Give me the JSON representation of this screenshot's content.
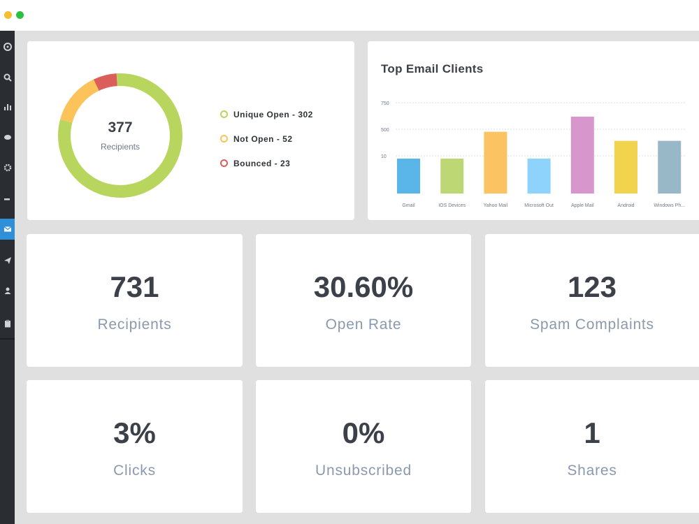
{
  "window": {
    "controls": [
      "close",
      "minimize"
    ]
  },
  "sidebar": {
    "items": [
      {
        "icon": "dashboard-icon",
        "active": false
      },
      {
        "icon": "search-icon",
        "active": false
      },
      {
        "icon": "reports-icon",
        "active": false
      },
      {
        "icon": "chat-icon",
        "active": false
      },
      {
        "icon": "settings-icon",
        "active": false
      },
      {
        "icon": "tools-icon",
        "active": false
      },
      {
        "icon": "email-icon",
        "active": true
      },
      {
        "icon": "send-icon",
        "active": false
      },
      {
        "icon": "user-icon",
        "active": false
      },
      {
        "icon": "clipboard-icon",
        "active": false
      }
    ]
  },
  "recipients_summary": {
    "total": "377",
    "total_label": "Recipients",
    "legend": [
      {
        "label": "Unique Open - 302",
        "value": 302,
        "color": "#b8d65e"
      },
      {
        "label": "Not Open - 52",
        "value": 52,
        "color": "#fbc35a"
      },
      {
        "label": "Bounced - 23",
        "value": 23,
        "color": "#dc5e5b"
      }
    ]
  },
  "email_clients": {
    "title": "Top Email Clients"
  },
  "chart_data": {
    "type": "bar",
    "title": "Top Email Clients",
    "categories": [
      "Gmail",
      "IOS Devices",
      "Yahoo Mail",
      "Microsoft Out",
      "Apple Mail",
      "Android",
      "Windows Ph..."
    ],
    "values": [
      10,
      -6,
      510,
      12,
      635,
      435,
      435
    ],
    "colors": [
      "#5ab6e8",
      "#bdd774",
      "#fbc362",
      "#8ed3fb",
      "#d897cc",
      "#f2d34d",
      "#98b8c8"
    ],
    "y_ticks": [
      "750",
      "500",
      "10"
    ],
    "grid": true
  },
  "stats": [
    {
      "value": "731",
      "label": "Recipients"
    },
    {
      "value": "30.60%",
      "label": "Open Rate"
    },
    {
      "value": "123",
      "label": "Spam Complaints"
    },
    {
      "value": "3%",
      "label": "Clicks"
    },
    {
      "value": "0%",
      "label": "Unsubscribed"
    },
    {
      "value": "1",
      "label": "Shares"
    }
  ]
}
